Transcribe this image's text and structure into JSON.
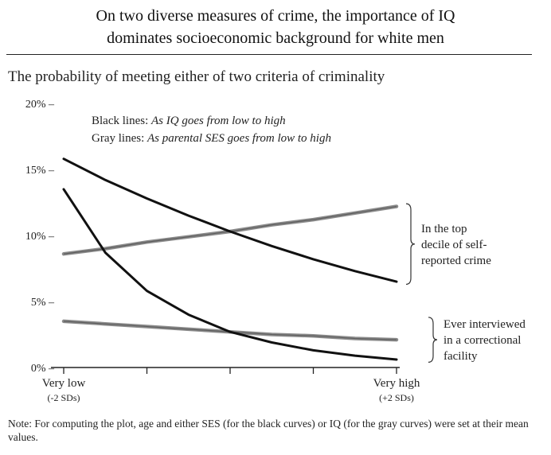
{
  "header": {
    "title_line1": "On two diverse measures of crime, the importance of IQ",
    "title_line2": "dominates socioeconomic background for white men"
  },
  "subtitle": "The probability of meeting either of two criteria of criminality",
  "legend": {
    "black_label": "Black lines:",
    "black_desc": "As IQ goes from low to high",
    "gray_label": "Gray lines:",
    "gray_desc": "As parental SES goes from low to high"
  },
  "chart_data": {
    "type": "line",
    "x_min_label": "Very low",
    "x_min_sub": "(-2 SDs)",
    "x_max_label": "Very high",
    "x_max_sub": "(+2 SDs)",
    "x_ticks": [
      -2,
      -1,
      0,
      1,
      2
    ],
    "xlim": [
      -2,
      2
    ],
    "ylim": [
      0,
      20
    ],
    "y_ticks": [
      0,
      5,
      10,
      15,
      20
    ],
    "y_tick_labels": [
      "0% –",
      "5% –",
      "10% –",
      "15% –",
      "20% –"
    ],
    "x": [
      -2,
      -1.5,
      -1,
      -0.5,
      0,
      0.5,
      1,
      1.5,
      2
    ],
    "series": [
      {
        "name": "IQ, self-reported crime",
        "color": "#111111",
        "values": [
          15.8,
          14.2,
          12.8,
          11.5,
          10.3,
          9.2,
          8.2,
          7.3,
          6.5
        ]
      },
      {
        "name": "SES, self-reported crime",
        "color": "#8a8a8a",
        "values": [
          8.6,
          9.0,
          9.5,
          9.9,
          10.3,
          10.8,
          11.2,
          11.7,
          12.2
        ]
      },
      {
        "name": "IQ, correctional facility",
        "color": "#111111",
        "values": [
          13.5,
          8.7,
          5.8,
          4.0,
          2.7,
          1.9,
          1.3,
          0.9,
          0.6
        ]
      },
      {
        "name": "SES, correctional facility",
        "color": "#8a8a8a",
        "values": [
          3.5,
          3.3,
          3.1,
          2.9,
          2.7,
          2.5,
          2.4,
          2.2,
          2.1
        ]
      }
    ],
    "annotations": [
      {
        "lines": [
          "In the top",
          "decile of self-",
          "reported crime"
        ],
        "range": [
          6.3,
          12.4
        ]
      },
      {
        "lines": [
          "Ever interviewed",
          "in a correctional",
          "facility"
        ],
        "range": [
          0.4,
          3.8
        ]
      }
    ]
  },
  "note": "Note: For computing the plot, age and either SES (for the black curves) or IQ (for the gray curves) were set at their mean values."
}
